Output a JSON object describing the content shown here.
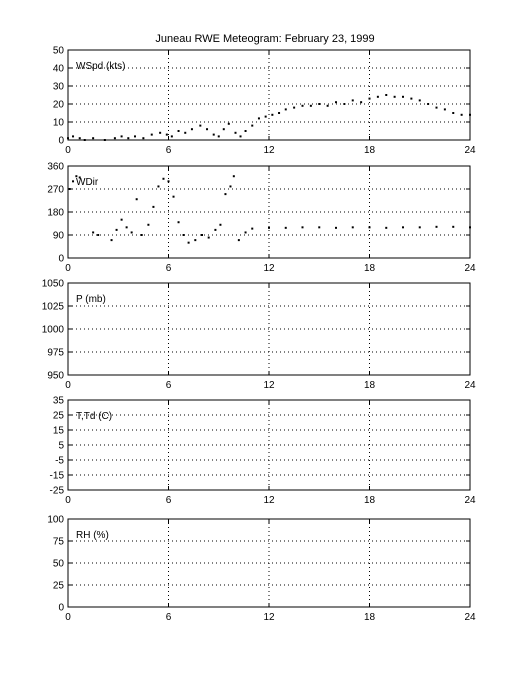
{
  "title": "Juneau RWE Meteogram:  February 23, 1999",
  "chart_data": [
    {
      "type": "scatter",
      "label": "WSpd (kts)",
      "xlim": [
        0,
        24
      ],
      "ylim": [
        0,
        50
      ],
      "xticks": [
        0,
        6,
        12,
        18,
        24
      ],
      "yticks": [
        0,
        10,
        20,
        30,
        40,
        50
      ],
      "grid": true,
      "series": [
        {
          "values": [
            [
              0,
              1
            ],
            [
              0.3,
              2
            ],
            [
              0.7,
              1
            ],
            [
              1.0,
              0
            ],
            [
              1.5,
              1
            ],
            [
              2.2,
              0
            ],
            [
              2.8,
              1
            ],
            [
              3.2,
              2
            ],
            [
              3.6,
              1
            ],
            [
              4.0,
              2
            ],
            [
              4.5,
              1
            ],
            [
              5.0,
              3
            ],
            [
              5.5,
              4
            ],
            [
              5.9,
              3
            ],
            [
              6.2,
              2
            ],
            [
              6.6,
              5
            ],
            [
              7.0,
              4
            ],
            [
              7.4,
              6
            ],
            [
              7.9,
              8
            ],
            [
              8.3,
              6
            ],
            [
              8.7,
              3
            ],
            [
              9.0,
              2
            ],
            [
              9.3,
              6
            ],
            [
              9.6,
              9
            ],
            [
              10.0,
              4
            ],
            [
              10.3,
              2
            ],
            [
              10.6,
              5
            ],
            [
              11.0,
              8
            ],
            [
              11.4,
              12
            ],
            [
              11.8,
              13
            ],
            [
              12.2,
              14
            ],
            [
              12.6,
              15
            ],
            [
              13.0,
              17
            ],
            [
              13.5,
              18
            ],
            [
              14.0,
              19
            ],
            [
              14.5,
              19
            ],
            [
              15.0,
              20
            ],
            [
              15.5,
              19
            ],
            [
              16.0,
              21
            ],
            [
              16.5,
              20
            ],
            [
              17.0,
              22
            ],
            [
              17.5,
              21
            ],
            [
              18.0,
              23
            ],
            [
              18.5,
              24
            ],
            [
              19.0,
              25
            ],
            [
              19.5,
              24
            ],
            [
              20.0,
              24
            ],
            [
              20.5,
              23
            ],
            [
              21.0,
              22
            ],
            [
              21.5,
              20
            ],
            [
              22.0,
              18
            ],
            [
              22.5,
              17
            ],
            [
              23.0,
              15
            ],
            [
              23.5,
              14
            ],
            [
              24.0,
              14
            ]
          ]
        }
      ]
    },
    {
      "type": "scatter",
      "label": "WDir",
      "xlim": [
        0,
        24
      ],
      "ylim": [
        0,
        360
      ],
      "xticks": [
        0,
        6,
        12,
        18,
        24
      ],
      "yticks": [
        0,
        90,
        180,
        270,
        360
      ],
      "grid": true,
      "series": [
        {
          "values": [
            [
              0.1,
              270
            ],
            [
              0.3,
              300
            ],
            [
              0.5,
              320
            ],
            [
              0.7,
              315
            ],
            [
              1.5,
              100
            ],
            [
              1.8,
              90
            ],
            [
              2.6,
              70
            ],
            [
              2.9,
              110
            ],
            [
              3.2,
              150
            ],
            [
              3.5,
              120
            ],
            [
              3.8,
              100
            ],
            [
              4.1,
              230
            ],
            [
              4.4,
              90
            ],
            [
              4.8,
              130
            ],
            [
              5.1,
              200
            ],
            [
              5.4,
              280
            ],
            [
              5.7,
              310
            ],
            [
              6.0,
              300
            ],
            [
              6.3,
              240
            ],
            [
              6.6,
              140
            ],
            [
              6.9,
              90
            ],
            [
              7.2,
              60
            ],
            [
              7.6,
              70
            ],
            [
              8.0,
              90
            ],
            [
              8.4,
              80
            ],
            [
              8.8,
              110
            ],
            [
              9.1,
              130
            ],
            [
              9.4,
              250
            ],
            [
              9.7,
              280
            ],
            [
              9.9,
              320
            ],
            [
              10.2,
              70
            ],
            [
              10.6,
              100
            ],
            [
              11.0,
              115
            ],
            [
              12.0,
              118
            ],
            [
              13.0,
              118
            ],
            [
              14.0,
              120
            ],
            [
              15.0,
              120
            ],
            [
              16.0,
              118
            ],
            [
              17.0,
              120
            ],
            [
              18.0,
              120
            ],
            [
              19.0,
              118
            ],
            [
              20.0,
              120
            ],
            [
              21.0,
              120
            ],
            [
              22.0,
              122
            ],
            [
              23.0,
              122
            ],
            [
              24.0,
              120
            ]
          ]
        }
      ]
    },
    {
      "type": "scatter",
      "label": "P (mb)",
      "xlim": [
        0,
        24
      ],
      "ylim": [
        950,
        1050
      ],
      "xticks": [
        0,
        6,
        12,
        18,
        24
      ],
      "yticks": [
        950,
        975,
        1000,
        1025,
        1050
      ],
      "grid": true,
      "series": []
    },
    {
      "type": "scatter",
      "label": "T,Td (C)",
      "xlim": [
        0,
        24
      ],
      "ylim": [
        -25,
        35
      ],
      "xticks": [
        0,
        6,
        12,
        18,
        24
      ],
      "yticks": [
        -25,
        -15,
        -5,
        5,
        15,
        25,
        35
      ],
      "extra_ytick_labels": [
        -15,
        -5,
        5,
        15,
        25
      ],
      "ytick_labels_all": [
        -25,
        -15,
        -5,
        5,
        15,
        25,
        35
      ],
      "grid": true,
      "series": []
    },
    {
      "type": "scatter",
      "label": "RH (%)",
      "xlim": [
        0,
        24
      ],
      "ylim": [
        0,
        100
      ],
      "xticks": [
        0,
        6,
        12,
        18,
        24
      ],
      "yticks": [
        0,
        25,
        50,
        75,
        100
      ],
      "grid": true,
      "series": []
    }
  ]
}
